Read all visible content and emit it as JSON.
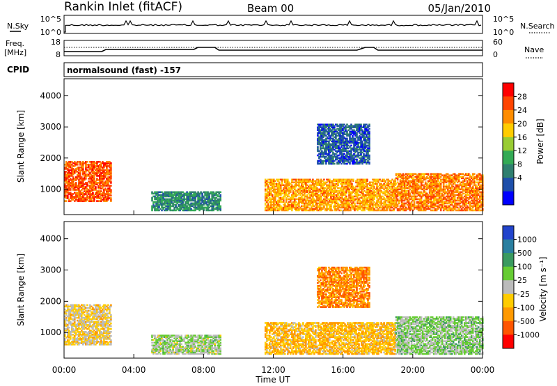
{
  "header": {
    "station": "Rankin Inlet (fitACF)",
    "beam": "Beam 00",
    "date": "05/Jan/2010"
  },
  "summary": {
    "nsky_label": "N.Sky",
    "nsky_tick_top": "10^5",
    "nsky_tick_bottom": "10^0",
    "nsearch_label": "N.Search",
    "nsearch_tick_top": "10^5",
    "nsearch_tick_bottom": "10^0",
    "freq_label_1": "Freq.",
    "freq_label_2": "[MHz]",
    "freq_tick_top": "18",
    "freq_tick_bottom": "8",
    "nave_label": "Nave",
    "nave_tick_top": "60",
    "nave_tick_bottom": "0",
    "cpid_label": "CPID",
    "cpid_text": "normalsound (fast) -157"
  },
  "axes": {
    "xlabel": "Time UT",
    "ylabel": "Slant Range [km]",
    "x_ticks": [
      "00:00",
      "04:00",
      "08:00",
      "12:00",
      "16:00",
      "20:00",
      "00:00"
    ],
    "y_ticks": [
      "1000",
      "2000",
      "3000",
      "4000"
    ]
  },
  "colorbars": {
    "power": {
      "label": "Power [dB]",
      "ticks": [
        "28",
        "24",
        "20",
        "16",
        "12",
        "8",
        "4"
      ],
      "colors": [
        "#ff0000",
        "#ff4400",
        "#ff8c00",
        "#ffcc00",
        "#99cc33",
        "#33aa55",
        "#2f7f6f",
        "#1e4faa",
        "#0000ff"
      ]
    },
    "velocity": {
      "label": "Velocity [m s⁻¹]",
      "ticks": [
        "1000",
        "500",
        "100",
        "25",
        "-25",
        "-100",
        "-500",
        "-1000"
      ],
      "colors": [
        "#2244cc",
        "#2a7fa0",
        "#3a9a60",
        "#66cc33",
        "#bbbbbb",
        "#ffcc00",
        "#ff9900",
        "#ff5500",
        "#ff0000"
      ]
    }
  },
  "chart_data": [
    {
      "type": "heatmap",
      "title": "Power",
      "xlabel": "Time UT",
      "ylabel": "Slant Range [km]",
      "xlim": [
        0,
        24
      ],
      "ylim": [
        180,
        4550
      ],
      "colorbar_range": [
        0,
        32
      ],
      "regions": [
        {
          "t0": 0.0,
          "t1": 2.7,
          "r0": 600,
          "r1": 1900,
          "v": 26
        },
        {
          "t0": 5.0,
          "t1": 9.0,
          "r0": 300,
          "r1": 900,
          "v": 10
        },
        {
          "t0": 11.5,
          "t1": 19.0,
          "r0": 300,
          "r1": 1300,
          "v": 22
        },
        {
          "t0": 14.5,
          "t1": 17.5,
          "r0": 1800,
          "r1": 3100,
          "v": 6
        },
        {
          "t0": 19.0,
          "t1": 24.0,
          "r0": 300,
          "r1": 1500,
          "v": 24
        }
      ]
    },
    {
      "type": "heatmap",
      "title": "Velocity",
      "xlabel": "Time UT",
      "ylabel": "Slant Range [km]",
      "xlim": [
        0,
        24
      ],
      "ylim": [
        180,
        4550
      ],
      "colorbar_range": [
        -1000,
        1000
      ],
      "regions": [
        {
          "t0": 0.0,
          "t1": 2.7,
          "r0": 600,
          "r1": 1900,
          "v": -150
        },
        {
          "t0": 5.0,
          "t1": 9.0,
          "r0": 300,
          "r1": 900,
          "v": 100
        },
        {
          "t0": 11.5,
          "t1": 19.0,
          "r0": 300,
          "r1": 1300,
          "v": -300
        },
        {
          "t0": 14.5,
          "t1": 17.5,
          "r0": 1800,
          "r1": 3100,
          "v": -500
        },
        {
          "t0": 19.0,
          "t1": 24.0,
          "r0": 300,
          "r1": 1500,
          "v": 150
        }
      ]
    }
  ]
}
